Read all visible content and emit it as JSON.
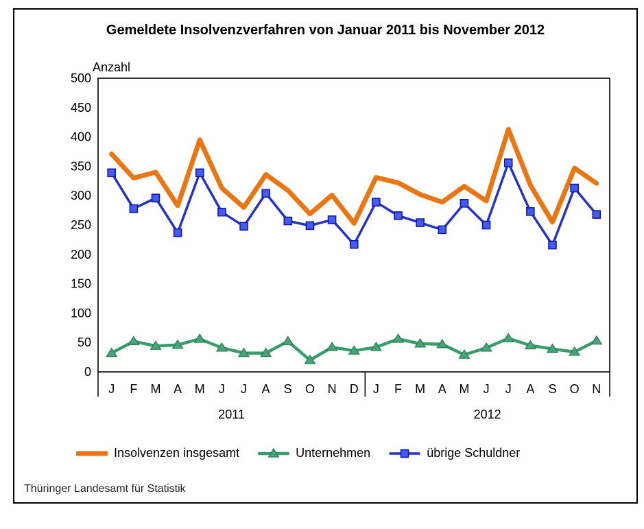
{
  "title": "Gemeldete Insolvenzverfahren von Januar 2011 bis November 2012",
  "y_axis_label": "Anzahl",
  "footer": "Thüringer Landesamt für Statistik",
  "colors": {
    "total_line": "#E97613",
    "companies_line": "#399C6C",
    "companies_marker_fill": "#46A577",
    "companies_marker_edge": "#2B7B52",
    "debtors_line": "#2331C9",
    "debtors_marker_fill": "#455CF2",
    "debtors_marker_edge": "#1219A9",
    "axis": "#000000"
  },
  "legend": [
    {
      "label": "Insolvenzen insgesamt",
      "marker": "none"
    },
    {
      "label": "Unternehmen",
      "marker": "triangle"
    },
    {
      "label": "übrige Schuldner",
      "marker": "square"
    }
  ],
  "chart_data": {
    "type": "line",
    "title": "Gemeldete Insolvenzverfahren von Januar 2011 bis November 2012",
    "xlabel": "",
    "ylabel": "Anzahl",
    "ylim": [
      0,
      500
    ],
    "ytick_step": 50,
    "grid": false,
    "legend_position": "bottom",
    "categories": [
      "J",
      "F",
      "M",
      "A",
      "M",
      "J",
      "J",
      "A",
      "S",
      "O",
      "N",
      "D",
      "J",
      "F",
      "M",
      "A",
      "M",
      "J",
      "J",
      "A",
      "S",
      "O",
      "N"
    ],
    "year_groups": [
      {
        "label": "2011",
        "span": 12
      },
      {
        "label": "2012",
        "span": 11
      }
    ],
    "series": [
      {
        "name": "Insolvenzen insgesamt",
        "marker": "none",
        "values": [
          371,
          330,
          340,
          283,
          395,
          313,
          280,
          336,
          309,
          269,
          301,
          253,
          331,
          322,
          302,
          289,
          316,
          291,
          413,
          318,
          255,
          347,
          321
        ]
      },
      {
        "name": "Unternehmen",
        "marker": "triangle",
        "values": [
          32,
          52,
          44,
          46,
          56,
          41,
          32,
          32,
          52,
          20,
          42,
          36,
          42,
          56,
          48,
          47,
          29,
          41,
          57,
          45,
          39,
          34,
          53
        ]
      },
      {
        "name": "übrige Schuldner",
        "marker": "square",
        "values": [
          339,
          278,
          296,
          237,
          339,
          272,
          248,
          304,
          257,
          249,
          259,
          217,
          289,
          266,
          254,
          242,
          287,
          250,
          356,
          273,
          216,
          313,
          268
        ]
      }
    ]
  }
}
